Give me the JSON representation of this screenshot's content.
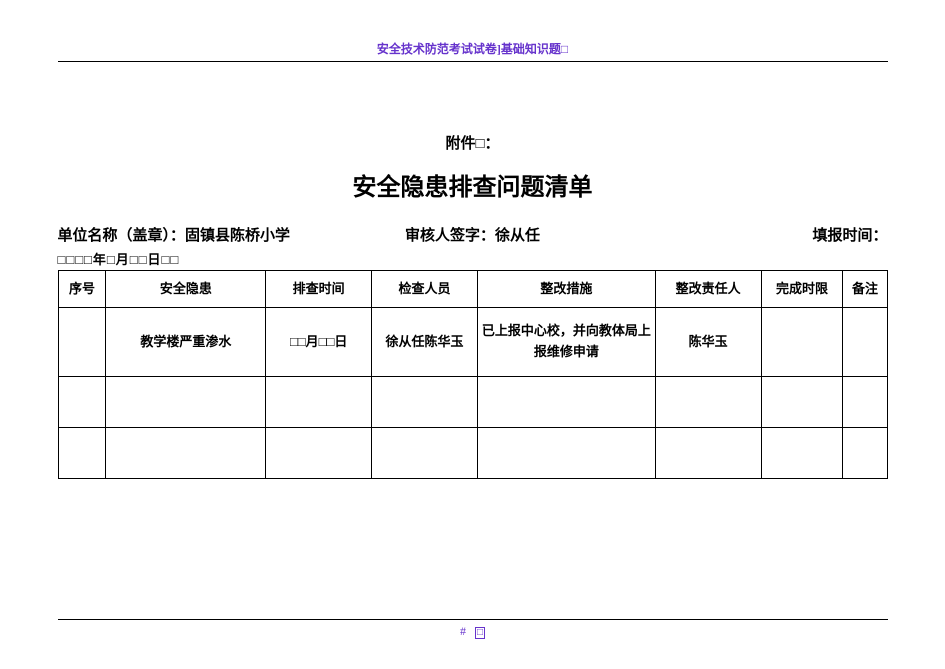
{
  "header": {
    "text": "安全技术防范考试试卷]基础知识题□"
  },
  "attachment": "附件□：",
  "title": "安全隐患排查问题清单",
  "info": {
    "unit_label": "单位名称（盖章）：",
    "unit_value": "固镇县陈桥小学",
    "reviewer_label": "审核人签字：",
    "reviewer_value": "徐从任",
    "report_time_label": "填报时间：",
    "report_time_value": ""
  },
  "pre_table": "□□□□年□月□□日□□",
  "columns": {
    "seq": "序号",
    "risk": "安全隐患",
    "time": "排查时间",
    "inspector": "检查人员",
    "measure": "整改措施",
    "owner": "整改责任人",
    "due": "完成时限",
    "note": "备注"
  },
  "rows": [
    {
      "seq": "",
      "risk": "教学楼严重渗水",
      "time": "□□月□□日",
      "inspector": "徐从任陈华玉",
      "measure": "已上报中心校，并向教体局上报维修申请",
      "owner": "陈华玉",
      "due": "",
      "note": ""
    }
  ],
  "empty_rows": 2,
  "footer": {
    "page": "#",
    "box": "□"
  }
}
